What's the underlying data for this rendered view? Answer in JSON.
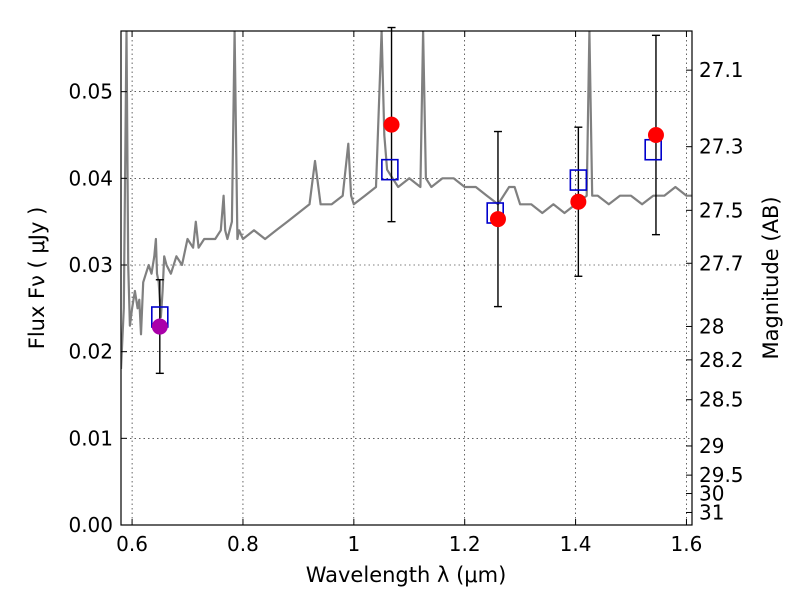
{
  "chart_data": {
    "type": "scatter",
    "xlabel": "Wavelength  λ (μm)",
    "ylabel": "Flux  Fν  ( μJy )",
    "ylabel_right": "Magnitude (AB)",
    "xlim": [
      0.58,
      1.61
    ],
    "ylim": [
      0.0,
      0.057
    ],
    "x_ticks": [
      0.6,
      0.8,
      1.0,
      1.2,
      1.4,
      1.6
    ],
    "x_tick_labels": [
      "0.6",
      "0.8",
      "1",
      "1.2",
      "1.4",
      "1.6"
    ],
    "y_ticks": [
      0.0,
      0.01,
      0.02,
      0.03,
      0.04,
      0.05
    ],
    "y_tick_labels": [
      "0.00",
      "0.01",
      "0.02",
      "0.03",
      "0.04",
      "0.05"
    ],
    "right_ticks": [
      {
        "label": "27.1",
        "mag": 27.1
      },
      {
        "label": "27.3",
        "mag": 27.3
      },
      {
        "label": "27.5",
        "mag": 27.5
      },
      {
        "label": "27.7",
        "mag": 27.7
      },
      {
        "label": "28",
        "mag": 28.0
      },
      {
        "label": "28.2",
        "mag": 28.2
      },
      {
        "label": "28.5",
        "mag": 28.5
      },
      {
        "label": "29",
        "mag": 29.0
      },
      {
        "label": "29.5",
        "mag": 29.5
      },
      {
        "label": "30",
        "mag": 30.0
      },
      {
        "label": "31",
        "mag": 31.0
      }
    ],
    "grid": true,
    "colors": {
      "model": "#808080",
      "observed": "#ff0000",
      "observed_first": "#aa00aa",
      "model_photometry": "#0000cc",
      "errorbar": "#000000"
    },
    "model_spectrum": {
      "x": [
        0.58,
        0.585,
        0.59,
        0.593,
        0.596,
        0.6,
        0.605,
        0.61,
        0.613,
        0.616,
        0.62,
        0.625,
        0.63,
        0.635,
        0.64,
        0.643,
        0.645,
        0.648,
        0.652,
        0.655,
        0.658,
        0.662,
        0.67,
        0.68,
        0.69,
        0.7,
        0.71,
        0.715,
        0.72,
        0.73,
        0.74,
        0.75,
        0.76,
        0.765,
        0.768,
        0.772,
        0.78,
        0.785,
        0.79,
        0.793,
        0.8,
        0.82,
        0.84,
        0.86,
        0.88,
        0.9,
        0.92,
        0.93,
        0.94,
        0.96,
        0.98,
        0.99,
        0.995,
        1.0,
        1.02,
        1.04,
        1.05,
        1.055,
        1.06,
        1.07,
        1.08,
        1.1,
        1.12,
        1.125,
        1.13,
        1.14,
        1.16,
        1.18,
        1.2,
        1.22,
        1.24,
        1.26,
        1.28,
        1.29,
        1.3,
        1.32,
        1.34,
        1.36,
        1.38,
        1.4,
        1.42,
        1.425,
        1.43,
        1.44,
        1.46,
        1.48,
        1.5,
        1.52,
        1.54,
        1.56,
        1.58,
        1.6,
        1.61
      ],
      "y": [
        0.018,
        0.025,
        0.057,
        0.03,
        0.023,
        0.025,
        0.027,
        0.025,
        0.026,
        0.022,
        0.028,
        0.029,
        0.03,
        0.029,
        0.031,
        0.033,
        0.029,
        0.028,
        0.024,
        0.027,
        0.031,
        0.03,
        0.029,
        0.031,
        0.03,
        0.033,
        0.032,
        0.035,
        0.032,
        0.033,
        0.033,
        0.033,
        0.034,
        0.038,
        0.034,
        0.033,
        0.035,
        0.057,
        0.033,
        0.034,
        0.033,
        0.034,
        0.033,
        0.034,
        0.035,
        0.036,
        0.037,
        0.042,
        0.037,
        0.037,
        0.038,
        0.044,
        0.038,
        0.037,
        0.038,
        0.039,
        0.057,
        0.045,
        0.041,
        0.04,
        0.039,
        0.04,
        0.039,
        0.057,
        0.04,
        0.039,
        0.04,
        0.04,
        0.039,
        0.039,
        0.038,
        0.037,
        0.039,
        0.039,
        0.037,
        0.037,
        0.036,
        0.037,
        0.036,
        0.037,
        0.038,
        0.057,
        0.038,
        0.038,
        0.037,
        0.038,
        0.038,
        0.037,
        0.038,
        0.038,
        0.039,
        0.038,
        0.038
      ]
    },
    "model_photometry": {
      "name": "",
      "x": [
        0.65,
        1.065,
        1.255,
        1.405,
        1.54
      ],
      "y": [
        0.024,
        0.041,
        0.036,
        0.0398,
        0.0433
      ]
    },
    "observed": {
      "name": "",
      "x": [
        0.65,
        1.068,
        1.26,
        1.405,
        1.545
      ],
      "y": [
        0.0229,
        0.0462,
        0.0353,
        0.0373,
        0.045
      ],
      "yerr_low": [
        0.0054,
        0.0112,
        0.0101,
        0.0086,
        0.0115
      ],
      "yerr_high": [
        0.0054,
        0.0112,
        0.0101,
        0.0086,
        0.0115
      ]
    }
  }
}
